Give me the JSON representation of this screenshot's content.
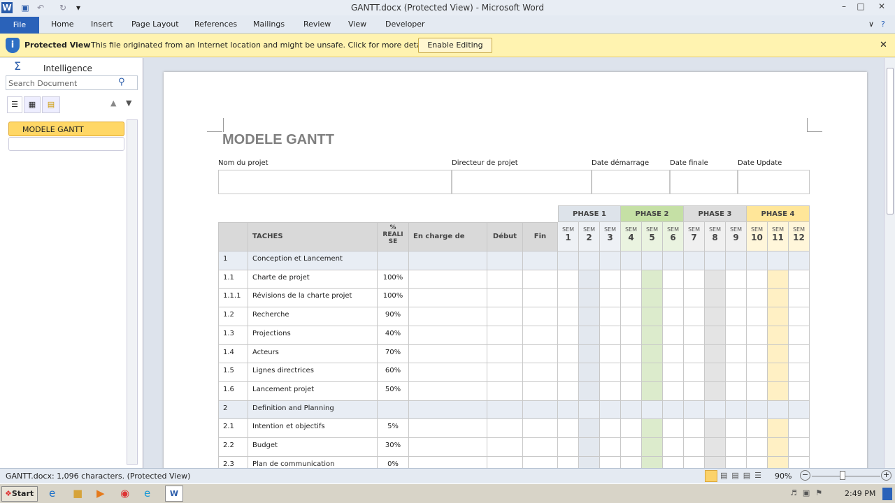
{
  "window": {
    "title": "GANTT.docx (Protected View)  -  Microsoft Word"
  },
  "ribbon": {
    "file": "File",
    "tabs": [
      "Home",
      "Insert",
      "Page Layout",
      "References",
      "Mailings",
      "Review",
      "View",
      "Developer"
    ]
  },
  "protected_view": {
    "title": "Protected View",
    "message": "This file originated from an Internet location and might be unsafe. Click for more details.",
    "button": "Enable Editing"
  },
  "nav": {
    "addin": "Intelligence",
    "search_placeholder": "Search Document",
    "headings": [
      "MODELE GANTT"
    ]
  },
  "doc": {
    "title": "MODELE GANTT",
    "fields": [
      "Nom du projet",
      "Directeur de projet",
      "Date démarrage",
      "Date finale",
      "Date Update"
    ],
    "phases": [
      {
        "label": "PHASE 1",
        "color": "#dde3ea"
      },
      {
        "label": "PHASE 2",
        "color": "#c5e0a5"
      },
      {
        "label": "PHASE 3",
        "color": "#dcdcdc"
      },
      {
        "label": "PHASE 4",
        "color": "#ffe699"
      }
    ],
    "week_prefix": "SEM",
    "weeks": [
      "1",
      "2",
      "3",
      "4",
      "5",
      "6",
      "7",
      "8",
      "9",
      "10",
      "11",
      "12"
    ],
    "headers": [
      "",
      "TACHES",
      "% REALI SE",
      "En charge de",
      "Début",
      "Fin"
    ],
    "rows": [
      {
        "num": "1",
        "task": "Conception et  Lancement",
        "pct": "",
        "group": true
      },
      {
        "num": "1.1",
        "task": "Charte de projet",
        "pct": "100%"
      },
      {
        "num": "1.1.1",
        "task": "Révisions de la charte projet",
        "pct": "100%"
      },
      {
        "num": "1.2",
        "task": "Recherche",
        "pct": "90%"
      },
      {
        "num": "1.3",
        "task": "Projections",
        "pct": "40%"
      },
      {
        "num": "1.4",
        "task": "Acteurs",
        "pct": "70%"
      },
      {
        "num": "1.5",
        "task": "Lignes directrices",
        "pct": "60%"
      },
      {
        "num": "1.6",
        "task": "Lancement projet",
        "pct": "50%"
      },
      {
        "num": "2",
        "task": "Definition and Planning",
        "pct": "",
        "group": true
      },
      {
        "num": "2.1",
        "task": "Intention et objectifs",
        "pct": "5%"
      },
      {
        "num": "2.2",
        "task": "Budget",
        "pct": "30%"
      },
      {
        "num": "2.3",
        "task": "Plan de communication",
        "pct": "0%"
      }
    ]
  },
  "status": {
    "text": "GANTT.docx: 1,096 characters.  (Protected View)",
    "zoom": "90%"
  },
  "taskbar": {
    "start": "Start",
    "time": "2:49 PM"
  }
}
